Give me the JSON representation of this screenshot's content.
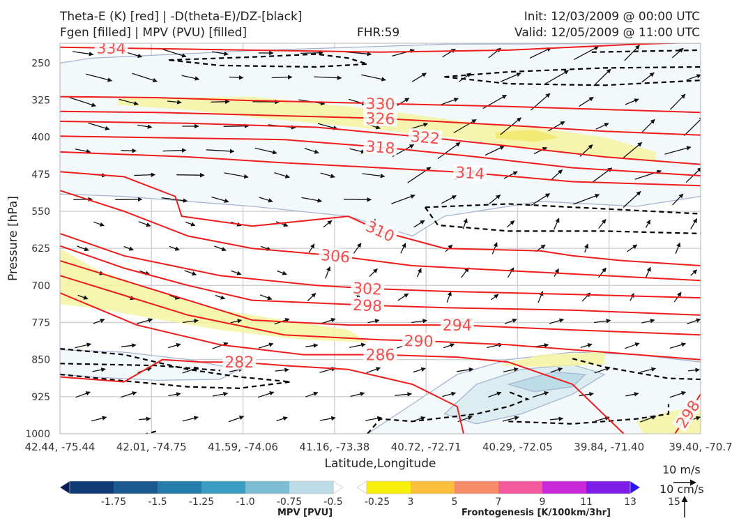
{
  "header": {
    "title_line1": "Theta-E (K) [red] | -D(theta-E)/DZ-[black]",
    "title_line2": "Fgen [filled] | MPV (PVU) [filled]",
    "fhr": "FHR:59",
    "init": "Init: 12/03/2009 @ 00:00 UTC",
    "valid": "Valid: 12/05/2009 @ 11:00 UTC"
  },
  "chart_data": {
    "type": "cross-section",
    "xlabel": "Latitude,Longitude",
    "ylabel": "Pressure [hPa]",
    "x_ticks": [
      "42.44, -75.44",
      "42.01, -74.75",
      "41.59, -74.06",
      "41.16, -73.38",
      "40.72, -72.71",
      "40.29, -72.05",
      "39.84, -71.40",
      "39.40, -70.7"
    ],
    "y_ticks": [
      250,
      325,
      400,
      475,
      550,
      625,
      700,
      775,
      850,
      925,
      1000
    ],
    "ylim": [
      1000,
      210
    ],
    "colors": {
      "theta_e": "#ee1c1c",
      "theta_e_label": "#f05050",
      "ddz": "#000000",
      "mpv_outline": "#a8b4d0",
      "axes_bg": "#ffffff",
      "grid": "#cfcfcf"
    },
    "theta_e_contours": [
      {
        "label": "334",
        "label_x": 0.08,
        "points": [
          [
            0.0,
            218
          ],
          [
            0.2,
            222
          ],
          [
            0.4,
            226
          ],
          [
            0.5,
            228
          ],
          [
            0.7,
            224
          ],
          [
            0.9,
            212
          ],
          [
            1.0,
            208
          ]
        ]
      },
      {
        "label": "330",
        "label_x": 0.5,
        "points": [
          [
            0.0,
            318
          ],
          [
            0.15,
            320
          ],
          [
            0.3,
            326
          ],
          [
            0.5,
            332
          ],
          [
            0.7,
            338
          ],
          [
            0.85,
            344
          ],
          [
            1.0,
            350
          ]
        ]
      },
      {
        "label": "326",
        "label_x": 0.5,
        "points": [
          [
            0.0,
            348
          ],
          [
            0.15,
            350
          ],
          [
            0.3,
            355
          ],
          [
            0.5,
            362
          ],
          [
            0.7,
            376
          ],
          [
            0.85,
            388
          ],
          [
            1.0,
            396
          ]
        ]
      },
      {
        "label": "322",
        "label_x": 0.57,
        "points": [
          [
            0.0,
            368
          ],
          [
            0.2,
            372
          ],
          [
            0.4,
            380
          ],
          [
            0.57,
            400
          ],
          [
            0.7,
            418
          ],
          [
            0.85,
            440
          ],
          [
            1.0,
            455
          ]
        ]
      },
      {
        "label": "318",
        "label_x": 0.5,
        "points": [
          [
            0.0,
            398
          ],
          [
            0.2,
            402
          ],
          [
            0.35,
            405
          ],
          [
            0.5,
            420
          ],
          [
            0.65,
            440
          ],
          [
            0.8,
            462
          ],
          [
            1.0,
            478
          ]
        ]
      },
      {
        "label": "314",
        "label_x": 0.64,
        "points": [
          [
            0.0,
            430
          ],
          [
            0.2,
            440
          ],
          [
            0.35,
            452
          ],
          [
            0.5,
            462
          ],
          [
            0.64,
            472
          ],
          [
            0.8,
            490
          ],
          [
            1.0,
            498
          ]
        ]
      },
      {
        "label": "310",
        "label_x": 0.5,
        "points": [
          [
            0.0,
            470
          ],
          [
            0.1,
            480
          ],
          [
            0.18,
            520
          ],
          [
            0.19,
            560
          ],
          [
            0.3,
            580
          ],
          [
            0.45,
            560
          ],
          [
            0.5,
            590
          ],
          [
            0.6,
            625
          ],
          [
            0.75,
            630
          ],
          [
            0.8,
            640
          ],
          [
            0.88,
            650
          ],
          [
            1.0,
            660
          ]
        ]
      },
      {
        "label": "306",
        "label_x": 0.43,
        "points": [
          [
            0.0,
            508
          ],
          [
            0.1,
            550
          ],
          [
            0.2,
            600
          ],
          [
            0.3,
            625
          ],
          [
            0.43,
            640
          ],
          [
            0.55,
            660
          ],
          [
            0.7,
            670
          ],
          [
            0.85,
            680
          ],
          [
            1.0,
            690
          ]
        ]
      },
      {
        "label": "302",
        "label_x": 0.48,
        "points": [
          [
            0.0,
            595
          ],
          [
            0.1,
            640
          ],
          [
            0.25,
            680
          ],
          [
            0.4,
            700
          ],
          [
            0.48,
            706
          ],
          [
            0.6,
            712
          ],
          [
            0.8,
            718
          ],
          [
            1.0,
            725
          ]
        ]
      },
      {
        "label": "298",
        "label_x": 0.48,
        "points": [
          [
            0.0,
            620
          ],
          [
            0.1,
            665
          ],
          [
            0.2,
            700
          ],
          [
            0.3,
            730
          ],
          [
            0.48,
            740
          ],
          [
            0.6,
            745
          ],
          [
            0.8,
            750
          ],
          [
            1.0,
            760
          ]
        ]
      },
      {
        "label": "294",
        "label_x": 0.62,
        "points": [
          [
            0.0,
            650
          ],
          [
            0.1,
            690
          ],
          [
            0.2,
            730
          ],
          [
            0.3,
            770
          ],
          [
            0.45,
            780
          ],
          [
            0.62,
            780
          ],
          [
            0.8,
            790
          ],
          [
            1.0,
            800
          ]
        ]
      },
      {
        "label": "290",
        "label_x": 0.56,
        "points": [
          [
            0.0,
            680
          ],
          [
            0.1,
            720
          ],
          [
            0.2,
            760
          ],
          [
            0.35,
            800
          ],
          [
            0.5,
            810
          ],
          [
            0.56,
            812
          ],
          [
            0.7,
            820
          ],
          [
            0.85,
            835
          ],
          [
            1.0,
            850
          ]
        ]
      },
      {
        "label": "286",
        "label_x": 0.5,
        "points": [
          [
            0.0,
            715
          ],
          [
            0.12,
            780
          ],
          [
            0.25,
            820
          ],
          [
            0.38,
            840
          ],
          [
            0.5,
            840
          ],
          [
            0.62,
            845
          ],
          [
            0.7,
            855
          ],
          [
            0.8,
            900
          ],
          [
            0.88,
            1000
          ]
        ]
      },
      {
        "label": "282",
        "label_x": 0.28,
        "points": [
          [
            0.0,
            885
          ],
          [
            0.1,
            895
          ],
          [
            0.16,
            850
          ],
          [
            0.22,
            855
          ],
          [
            0.28,
            855
          ],
          [
            0.35,
            862
          ],
          [
            0.45,
            870
          ],
          [
            0.55,
            900
          ],
          [
            0.62,
            945
          ],
          [
            0.63,
            1000
          ]
        ]
      },
      {
        "label": "298",
        "label_x": 0.98,
        "points": [
          [
            0.96,
            1000
          ],
          [
            0.98,
            960
          ],
          [
            1.0,
            920
          ]
        ]
      }
    ],
    "ddz_contours": [
      [
        [
          0.17,
          244
        ],
        [
          0.3,
          238
        ],
        [
          0.4,
          232
        ],
        [
          0.45,
          240
        ],
        [
          0.48,
          252
        ],
        [
          0.4,
          258
        ],
        [
          0.25,
          255
        ],
        [
          0.17,
          244
        ]
      ],
      [
        [
          0.6,
          278
        ],
        [
          0.7,
          268
        ],
        [
          0.85,
          260
        ],
        [
          1.0,
          258
        ]
      ],
      [
        [
          0.6,
          278
        ],
        [
          0.7,
          292
        ],
        [
          0.85,
          295
        ],
        [
          1.0,
          285
        ]
      ],
      [
        [
          0.83,
          228
        ],
        [
          1.0,
          224
        ]
      ],
      [
        [
          0.57,
          542
        ],
        [
          0.7,
          535
        ],
        [
          0.85,
          545
        ],
        [
          1.0,
          555
        ]
      ],
      [
        [
          0.57,
          542
        ],
        [
          0.59,
          578
        ],
        [
          0.7,
          590
        ],
        [
          0.85,
          590
        ],
        [
          1.0,
          595
        ]
      ],
      [
        [
          0.0,
          828
        ],
        [
          0.1,
          840
        ],
        [
          0.2,
          870
        ],
        [
          0.28,
          885
        ],
        [
          0.36,
          895
        ],
        [
          0.28,
          908
        ],
        [
          0.2,
          905
        ],
        [
          0.1,
          893
        ],
        [
          0.0,
          880
        ]
      ],
      [
        [
          0.0,
          858
        ],
        [
          0.15,
          862
        ],
        [
          0.25,
          872
        ]
      ],
      [
        [
          0.13,
          1002
        ],
        [
          0.15,
          995
        ]
      ],
      [
        [
          0.48,
          1000
        ],
        [
          0.5,
          970
        ],
        [
          0.55,
          975
        ],
        [
          0.65,
          960
        ],
        [
          0.7,
          945
        ],
        [
          0.73,
          930
        ],
        [
          0.7,
          915
        ]
      ],
      [
        [
          0.8,
          848
        ],
        [
          0.85,
          865
        ],
        [
          0.95,
          888
        ],
        [
          1.0,
          890
        ]
      ],
      [
        [
          0.7,
          975
        ],
        [
          0.8,
          980
        ],
        [
          0.9,
          970
        ],
        [
          0.95,
          960
        ],
        [
          0.95,
          940
        ]
      ]
    ],
    "fgen_fill": [
      {
        "level": 3,
        "points": [
          [
            0.0,
            625
          ],
          [
            0.06,
            670
          ],
          [
            0.15,
            710
          ],
          [
            0.25,
            750
          ],
          [
            0.35,
            770
          ],
          [
            0.45,
            790
          ],
          [
            0.48,
            815
          ],
          [
            0.38,
            810
          ],
          [
            0.25,
            790
          ],
          [
            0.15,
            768
          ],
          [
            0.05,
            745
          ],
          [
            0.0,
            738
          ]
        ]
      },
      {
        "level": 3,
        "points": [
          [
            0.09,
            322
          ],
          [
            0.3,
            318
          ],
          [
            0.5,
            345
          ],
          [
            0.65,
            372
          ],
          [
            0.75,
            382
          ],
          [
            0.85,
            400
          ],
          [
            0.93,
            430
          ],
          [
            0.93,
            450
          ],
          [
            0.85,
            440
          ],
          [
            0.75,
            425
          ],
          [
            0.6,
            400
          ],
          [
            0.45,
            378
          ],
          [
            0.3,
            360
          ],
          [
            0.2,
            345
          ],
          [
            0.09,
            335
          ]
        ]
      },
      {
        "level": 3,
        "points": [
          [
            0.69,
            860
          ],
          [
            0.75,
            840
          ],
          [
            0.85,
            835
          ],
          [
            0.85,
            860
          ],
          [
            0.75,
            865
          ],
          [
            0.69,
            862
          ]
        ]
      },
      {
        "level": 3,
        "points": [
          [
            0.9,
            975
          ],
          [
            0.95,
            955
          ],
          [
            1.0,
            945
          ],
          [
            1.0,
            1000
          ],
          [
            0.91,
            1000
          ]
        ]
      },
      {
        "level": 5,
        "points": [
          [
            0.68,
            390
          ],
          [
            0.74,
            385
          ],
          [
            0.78,
            400
          ],
          [
            0.74,
            410
          ],
          [
            0.68,
            402
          ]
        ]
      }
    ],
    "mpv_fill": [
      {
        "level": -0.25,
        "points": [
          [
            0.0,
            250
          ],
          [
            0.05,
            240
          ],
          [
            0.3,
            225
          ],
          [
            0.6,
            212
          ],
          [
            1.0,
            210
          ],
          [
            1.0,
            520
          ],
          [
            0.9,
            540
          ],
          [
            0.75,
            530
          ],
          [
            0.6,
            560
          ],
          [
            0.55,
            600
          ],
          [
            0.45,
            560
          ],
          [
            0.3,
            540
          ],
          [
            0.2,
            530
          ],
          [
            0.1,
            520
          ],
          [
            0.0,
            515
          ]
        ]
      },
      {
        "level": -0.25,
        "points": [
          [
            0.48,
            1000
          ],
          [
            0.55,
            940
          ],
          [
            0.62,
            880
          ],
          [
            0.7,
            850
          ],
          [
            0.8,
            835
          ],
          [
            0.9,
            840
          ],
          [
            1.0,
            855
          ],
          [
            1.0,
            1000
          ]
        ]
      },
      {
        "level": -0.25,
        "points": [
          [
            0.0,
            830
          ],
          [
            0.1,
            835
          ],
          [
            0.2,
            850
          ],
          [
            0.28,
            870
          ],
          [
            0.25,
            890
          ],
          [
            0.15,
            892
          ],
          [
            0.05,
            885
          ],
          [
            0.0,
            880
          ]
        ]
      },
      {
        "level": -0.5,
        "points": [
          [
            0.6,
            960
          ],
          [
            0.65,
            900
          ],
          [
            0.72,
            870
          ],
          [
            0.8,
            860
          ],
          [
            0.85,
            880
          ],
          [
            0.8,
            920
          ],
          [
            0.72,
            960
          ],
          [
            0.65,
            980
          ]
        ]
      },
      {
        "level": -0.75,
        "points": [
          [
            0.7,
            900
          ],
          [
            0.77,
            875
          ],
          [
            0.82,
            880
          ],
          [
            0.8,
            905
          ],
          [
            0.74,
            915
          ]
        ]
      }
    ],
    "wind_vectors": "dense field of black arrows, stronger westerly aloft, weak below 550 hPa",
    "colorbars": [
      {
        "name": "MPV [PVU]",
        "ticks": [
          "-1.75",
          "-1.5",
          "-1.25",
          "-1.0",
          "-0.75",
          "-0.5",
          "-0.25"
        ],
        "colors": [
          "#081d58",
          "#113b75",
          "#1c5990",
          "#237ca9",
          "#3a9cc0",
          "#7dbdd4",
          "#bcdde7",
          "#ffffff"
        ]
      },
      {
        "name": "Frontogenesis [K/100km/3hr]",
        "ticks": [
          "3",
          "5",
          "7",
          "9",
          "11",
          "13",
          "15"
        ],
        "colors": [
          "#ffffff",
          "#f8f00a",
          "#fbbe3d",
          "#f78c6a",
          "#f55a9d",
          "#c828d8",
          "#7e1de8",
          "#2c14f5"
        ]
      }
    ],
    "reference_vectors": {
      "horizontal": "10 m/s",
      "vertical": "10 cm/s"
    }
  }
}
